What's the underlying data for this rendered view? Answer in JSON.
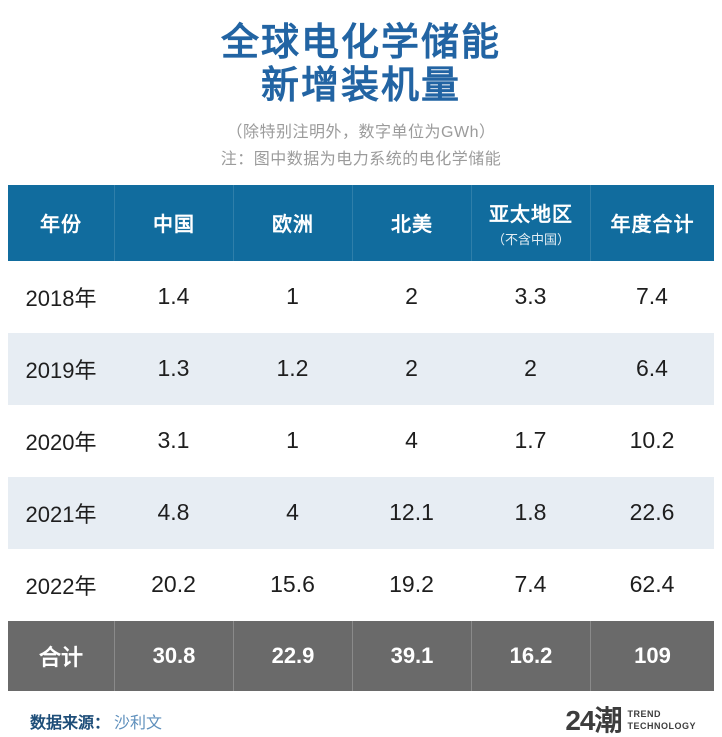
{
  "title": {
    "line1": "全球电化学储能",
    "line2": "新增装机量"
  },
  "subtitle": "（除特别注明外，数字单位为GWh）",
  "note": "注：图中数据为电力系统的电化学储能",
  "chart_data": {
    "type": "table",
    "title": "全球电化学储能新增装机量",
    "unit": "GWh",
    "columns": [
      {
        "label": "年份",
        "sublabel": ""
      },
      {
        "label": "中国",
        "sublabel": ""
      },
      {
        "label": "欧洲",
        "sublabel": ""
      },
      {
        "label": "北美",
        "sublabel": ""
      },
      {
        "label": "亚太地区",
        "sublabel": "（不含中国）"
      },
      {
        "label": "年度合计",
        "sublabel": ""
      }
    ],
    "rows": [
      {
        "year": "2018年",
        "values": [
          "1.4",
          "1",
          "2",
          "3.3",
          "7.4"
        ]
      },
      {
        "year": "2019年",
        "values": [
          "1.3",
          "1.2",
          "2",
          "2",
          "6.4"
        ]
      },
      {
        "year": "2020年",
        "values": [
          "3.1",
          "1",
          "4",
          "1.7",
          "10.2"
        ]
      },
      {
        "year": "2021年",
        "values": [
          "4.8",
          "4",
          "12.1",
          "1.8",
          "22.6"
        ]
      },
      {
        "year": "2022年",
        "values": [
          "20.2",
          "15.6",
          "19.2",
          "7.4",
          "62.4"
        ]
      }
    ],
    "total_row": {
      "label": "合计",
      "values": [
        "30.8",
        "22.9",
        "39.1",
        "16.2",
        "109"
      ]
    }
  },
  "footer": {
    "source_label": "数据来源：",
    "source_value": "沙利文",
    "logo_mark": "24潮",
    "logo_line1": "TREND",
    "logo_line2": "TECHNOLOGY"
  },
  "colors": {
    "title_blue": "#2264a3",
    "header_bg": "#116c9e",
    "alt_row_bg": "#e7edf3",
    "total_bg": "#6a6a6a",
    "note_gray": "#9b9b9b",
    "source_label": "#1e4e79",
    "source_value": "#5e8fbc",
    "logo": "#3d3d3d"
  }
}
